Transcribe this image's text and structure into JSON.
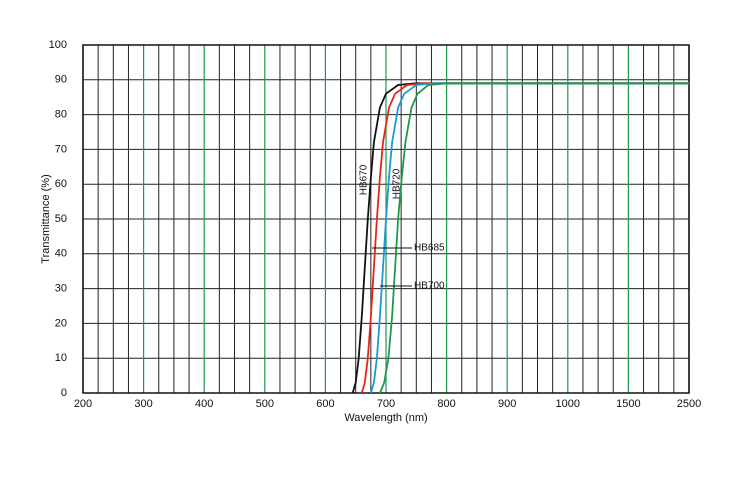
{
  "chart_data": {
    "type": "line",
    "xlabel": "Wavelength (nm)",
    "ylabel": "Transmittance (%)",
    "xticks": [
      200,
      300,
      400,
      500,
      600,
      700,
      800,
      900,
      1000,
      1500,
      2500
    ],
    "xlim": [
      200,
      2500
    ],
    "yticks": [
      0,
      10,
      20,
      30,
      40,
      50,
      60,
      70,
      80,
      90,
      100
    ],
    "ylim": [
      0,
      100
    ],
    "grid": true,
    "grid_color": "#1a9a4a",
    "series": [
      {
        "name": "HB670",
        "color": "#111111",
        "x": [
          645,
          650,
          655,
          660,
          665,
          670,
          675,
          680,
          690,
          700,
          720,
          750,
          2500
        ],
        "values": [
          0,
          3,
          10,
          22,
          36,
          50,
          62,
          72,
          82,
          86,
          88.5,
          89,
          89
        ]
      },
      {
        "name": "HB685",
        "color": "#e8251b",
        "x": [
          660,
          665,
          670,
          675,
          680,
          685,
          690,
          695,
          705,
          715,
          735,
          765,
          2500
        ],
        "values": [
          0,
          3,
          10,
          22,
          36,
          50,
          62,
          72,
          82,
          86,
          88.5,
          89,
          89
        ]
      },
      {
        "name": "HB700",
        "color": "#1a9ad6",
        "x": [
          675,
          680,
          685,
          690,
          695,
          700,
          705,
          710,
          720,
          730,
          750,
          780,
          2500
        ],
        "values": [
          0,
          3,
          10,
          22,
          36,
          50,
          62,
          72,
          82,
          86,
          88.5,
          89,
          89
        ]
      },
      {
        "name": "HB720",
        "color": "#1a9a4a",
        "x": [
          690,
          697,
          704,
          710,
          715,
          720,
          726,
          732,
          742,
          752,
          770,
          800,
          2500
        ],
        "values": [
          0,
          3,
          10,
          22,
          36,
          50,
          62,
          72,
          82,
          86,
          88.5,
          89,
          89
        ]
      }
    ]
  }
}
